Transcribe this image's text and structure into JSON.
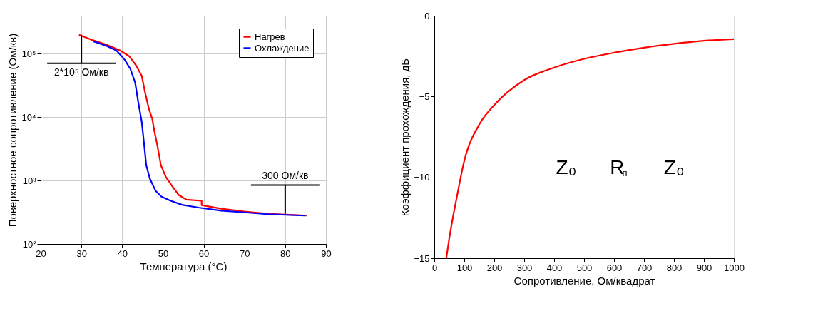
{
  "chart_data": [
    {
      "type": "line",
      "xlabel": "Температура (°C)",
      "ylabel": "Поверхностное сопротивление (Ом/кв)",
      "log": "y",
      "xlim": [
        20,
        90
      ],
      "xticks": [
        20,
        30,
        40,
        50,
        60,
        70,
        80,
        90
      ],
      "ylim": [
        100,
        400000
      ],
      "yticks": [
        {
          "value": 100,
          "label": "10²"
        },
        {
          "value": 1000,
          "label": "10³"
        },
        {
          "value": 10000,
          "label": "10⁴"
        },
        {
          "value": 100000,
          "label": "10⁵"
        }
      ],
      "grid": true,
      "legend": "top right",
      "line_style": "solid",
      "marker": "none",
      "series": [
        {
          "name": "Нагрев",
          "color": "#ff0000",
          "x": [
            29.4,
            32.7,
            36.1,
            39.5,
            41.7,
            43.4,
            44.8,
            45.6,
            46.5,
            47.4,
            48.0,
            48.6,
            49.5,
            50.7,
            52.2,
            53.9,
            55.8,
            59.5,
            59.5,
            64.3,
            70.0,
            75.6,
            85.4
          ],
          "values": [
            200000,
            165000,
            140000,
            113000,
            92000,
            66000,
            45000,
            25000,
            14000,
            9300,
            5600,
            3700,
            1750,
            1150,
            830,
            590,
            500,
            480,
            410,
            360,
            325,
            300,
            280
          ]
        },
        {
          "name": "Охлаждение",
          "color": "#0000ff",
          "x": [
            32.9,
            36.1,
            38.6,
            40.6,
            42.0,
            43.2,
            44.0,
            44.8,
            45.4,
            45.9,
            46.8,
            48.2,
            49.6,
            51.9,
            54.7,
            58.7,
            64.3,
            70.0,
            75.6,
            84.9
          ],
          "values": [
            158000,
            134000,
            113000,
            81000,
            58000,
            35000,
            16600,
            8500,
            3700,
            1750,
            1070,
            690,
            560,
            480,
            415,
            375,
            335,
            315,
            295,
            280
          ]
        }
      ],
      "annotations": [
        {
          "text": "2*10⁵ Ом/кв",
          "x": 30,
          "y": 200000
        },
        {
          "text": "300 Ом/кв",
          "x": 80,
          "y": 300
        }
      ]
    },
    {
      "type": "line",
      "xlabel": "Сопротивление, Ом/квадрат",
      "ylabel": "Коэффициент прохождения, дБ",
      "xlim": [
        0,
        1000
      ],
      "xticks": [
        0,
        100,
        200,
        300,
        400,
        500,
        600,
        700,
        800,
        900,
        1000
      ],
      "ylim": [
        -15,
        0
      ],
      "yticks": [
        -15,
        -10,
        -5,
        0
      ],
      "grid": false,
      "line_style": "solid",
      "marker": "none",
      "series": [
        {
          "color": "#ff0000",
          "x": [
            40,
            50,
            75,
            100,
            150,
            200,
            300,
            400,
            500,
            600,
            700,
            800,
            900,
            1000
          ],
          "values": [
            -15.0,
            -13.76,
            -11.23,
            -8.98,
            -6.73,
            -5.53,
            -3.98,
            -3.21,
            -2.67,
            -2.29,
            -1.98,
            -1.74,
            -1.55,
            -1.45
          ]
        }
      ],
      "annotations": [
        "Z₀",
        "R$_{п}$",
        "Z₀"
      ]
    }
  ]
}
